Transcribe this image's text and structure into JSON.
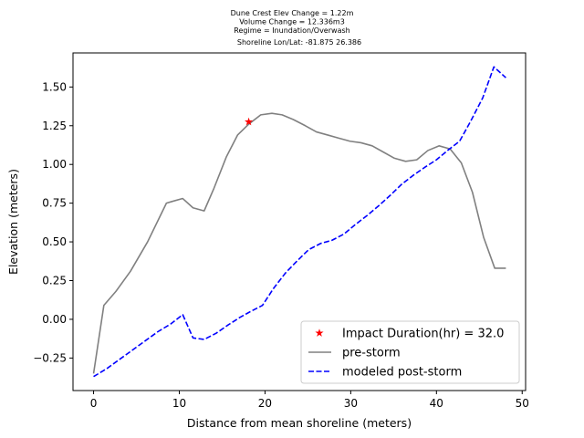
{
  "chart_data": {
    "type": "line",
    "title_lines": [
      "Dune Crest Elev Change = 1.22m",
      "Volume Change = 12.336m3",
      "Regime = Inundation/Overwash",
      "Shoreline Lon/Lat: -81.875 26.386"
    ],
    "xlabel": "Distance from mean shoreline (meters)",
    "ylabel": "Elevation (meters)",
    "xlim": [
      -2.4,
      50.4
    ],
    "ylim": [
      -0.46,
      1.72
    ],
    "xticks": [
      0,
      10,
      20,
      30,
      40,
      50
    ],
    "yticks": [
      -0.25,
      0.0,
      0.25,
      0.5,
      0.75,
      1.0,
      1.25,
      1.5
    ],
    "ytick_labels": [
      "−0.25",
      "0.00",
      "0.25",
      "0.50",
      "0.75",
      "1.00",
      "1.25",
      "1.50"
    ],
    "grid": false,
    "legend_position": "lower-right",
    "series": [
      {
        "name": "pre-storm",
        "color": "#808080",
        "style": "solid",
        "x": [
          0,
          1.2,
          2.6,
          4.3,
          6.3,
          8.5,
          9.1,
          10.4,
          11.6,
          12.9,
          14.0,
          15.5,
          16.8,
          18.1,
          19.5,
          20.8,
          22.0,
          23.3,
          24.7,
          26.0,
          27.3,
          28.6,
          29.9,
          31.2,
          32.5,
          33.8,
          35.1,
          36.4,
          37.7,
          39.0,
          40.3,
          41.6,
          42.9,
          44.2,
          45.5,
          46.8,
          48.1
        ],
        "y": [
          -0.35,
          0.09,
          0.18,
          0.31,
          0.5,
          0.75,
          0.76,
          0.78,
          0.72,
          0.7,
          0.84,
          1.05,
          1.19,
          1.26,
          1.32,
          1.33,
          1.32,
          1.29,
          1.25,
          1.21,
          1.19,
          1.17,
          1.15,
          1.14,
          1.12,
          1.08,
          1.04,
          1.02,
          1.03,
          1.09,
          1.12,
          1.1,
          1.01,
          0.82,
          0.53,
          0.33,
          0.33
        ]
      },
      {
        "name": "modeled post-storm",
        "color": "#0000ff",
        "style": "dashed",
        "x": [
          0,
          1.5,
          3.0,
          4.5,
          6.0,
          7.5,
          9.0,
          10.4,
          11.6,
          12.9,
          14.3,
          15.6,
          17.0,
          18.3,
          19.7,
          21.0,
          22.4,
          23.8,
          25.1,
          26.5,
          27.8,
          29.2,
          30.5,
          31.9,
          33.2,
          34.6,
          35.9,
          37.3,
          38.6,
          40.0,
          41.3,
          42.7,
          44.0,
          45.4,
          46.7,
          48.1
        ],
        "y": [
          -0.37,
          -0.32,
          -0.26,
          -0.2,
          -0.14,
          -0.08,
          -0.03,
          0.03,
          -0.12,
          -0.13,
          -0.09,
          -0.04,
          0.01,
          0.05,
          0.09,
          0.2,
          0.3,
          0.38,
          0.45,
          0.49,
          0.51,
          0.55,
          0.61,
          0.67,
          0.73,
          0.8,
          0.87,
          0.93,
          0.98,
          1.03,
          1.09,
          1.15,
          1.28,
          1.43,
          1.63,
          1.56
        ]
      },
      {
        "name": "Impact Duration(hr) = 32.0",
        "color": "#ff0000",
        "style": "marker",
        "marker": "star",
        "x": [
          18.1
        ],
        "y": [
          1.275
        ]
      }
    ],
    "legend_order": [
      "Impact Duration(hr) = 32.0",
      "pre-storm",
      "modeled post-storm"
    ]
  }
}
